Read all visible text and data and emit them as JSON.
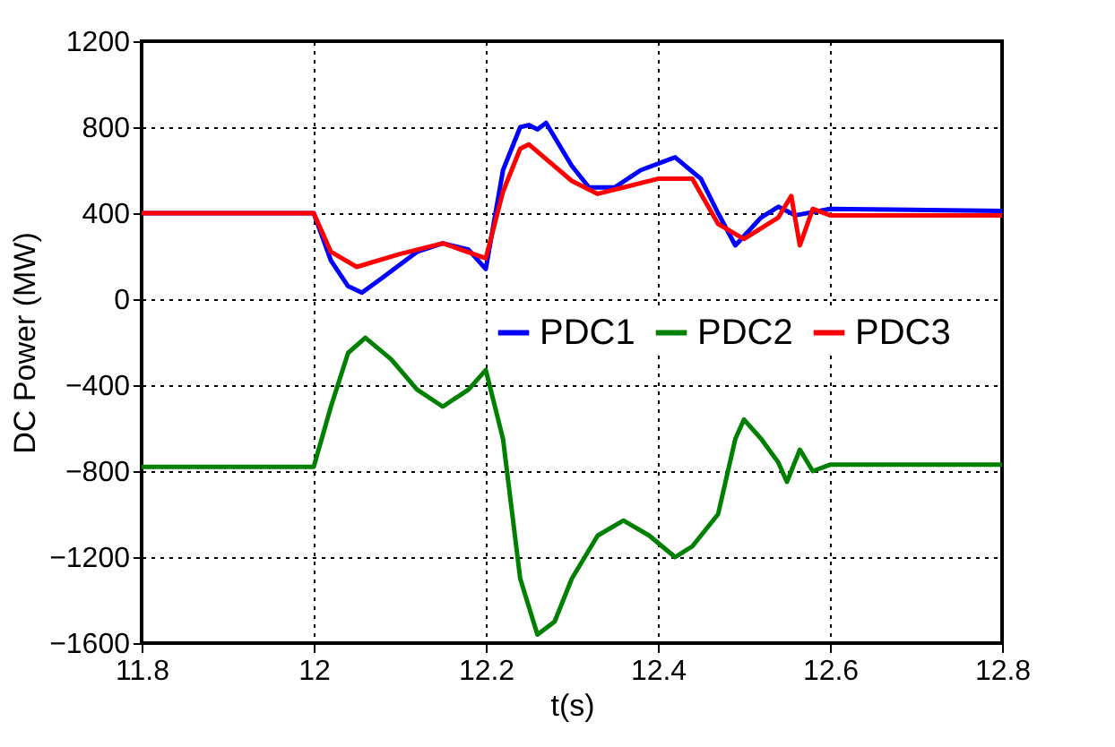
{
  "chart_data": {
    "type": "line",
    "xlabel": "t(s)",
    "ylabel": "DC Power (MW)",
    "xlim": [
      11.8,
      12.8
    ],
    "xticks": [
      11.8,
      12,
      12.2,
      12.4,
      12.6,
      12.8
    ],
    "ylim": [
      -1600,
      1200
    ],
    "yticks": [
      -1600,
      -1200,
      -800,
      -400,
      0,
      400,
      800,
      1200
    ],
    "grid": true,
    "legend": "right",
    "line_style": "solid",
    "series": [
      {
        "name": "PDC1",
        "color": "#0000ff",
        "x": [
          11.8,
          12.0,
          12.02,
          12.04,
          12.056,
          12.08,
          12.12,
          12.15,
          12.18,
          12.2,
          12.22,
          12.24,
          12.25,
          12.26,
          12.27,
          12.3,
          12.32,
          12.35,
          12.38,
          12.42,
          12.45,
          12.47,
          12.49,
          12.52,
          12.54,
          12.56,
          12.6,
          12.8
        ],
        "values": [
          400,
          400,
          180,
          60,
          30,
          100,
          220,
          260,
          230,
          140,
          600,
          800,
          810,
          790,
          820,
          620,
          520,
          520,
          600,
          660,
          560,
          400,
          250,
          380,
          430,
          390,
          420,
          410
        ]
      },
      {
        "name": "PDC2",
        "color": "#008000",
        "x": [
          11.8,
          12.0,
          12.02,
          12.04,
          12.06,
          12.09,
          12.12,
          12.15,
          12.18,
          12.2,
          12.22,
          12.24,
          12.26,
          12.28,
          12.3,
          12.33,
          12.36,
          12.39,
          12.42,
          12.44,
          12.47,
          12.49,
          12.5,
          12.52,
          12.54,
          12.55,
          12.565,
          12.58,
          12.6,
          12.8
        ],
        "values": [
          -780,
          -780,
          -500,
          -250,
          -180,
          -280,
          -420,
          -500,
          -420,
          -330,
          -650,
          -1300,
          -1560,
          -1500,
          -1300,
          -1100,
          -1030,
          -1100,
          -1200,
          -1150,
          -1000,
          -650,
          -560,
          -650,
          -760,
          -850,
          -700,
          -800,
          -770,
          -770
        ]
      },
      {
        "name": "PDC3",
        "color": "#ff0000",
        "x": [
          11.8,
          12.0,
          12.02,
          12.05,
          12.1,
          12.15,
          12.2,
          12.22,
          12.24,
          12.25,
          12.3,
          12.33,
          12.36,
          12.4,
          12.44,
          12.47,
          12.5,
          12.52,
          12.54,
          12.555,
          12.565,
          12.58,
          12.6,
          12.8
        ],
        "values": [
          400,
          400,
          220,
          150,
          210,
          260,
          190,
          500,
          700,
          720,
          550,
          490,
          520,
          560,
          560,
          350,
          280,
          330,
          380,
          480,
          250,
          420,
          390,
          390
        ]
      }
    ]
  }
}
